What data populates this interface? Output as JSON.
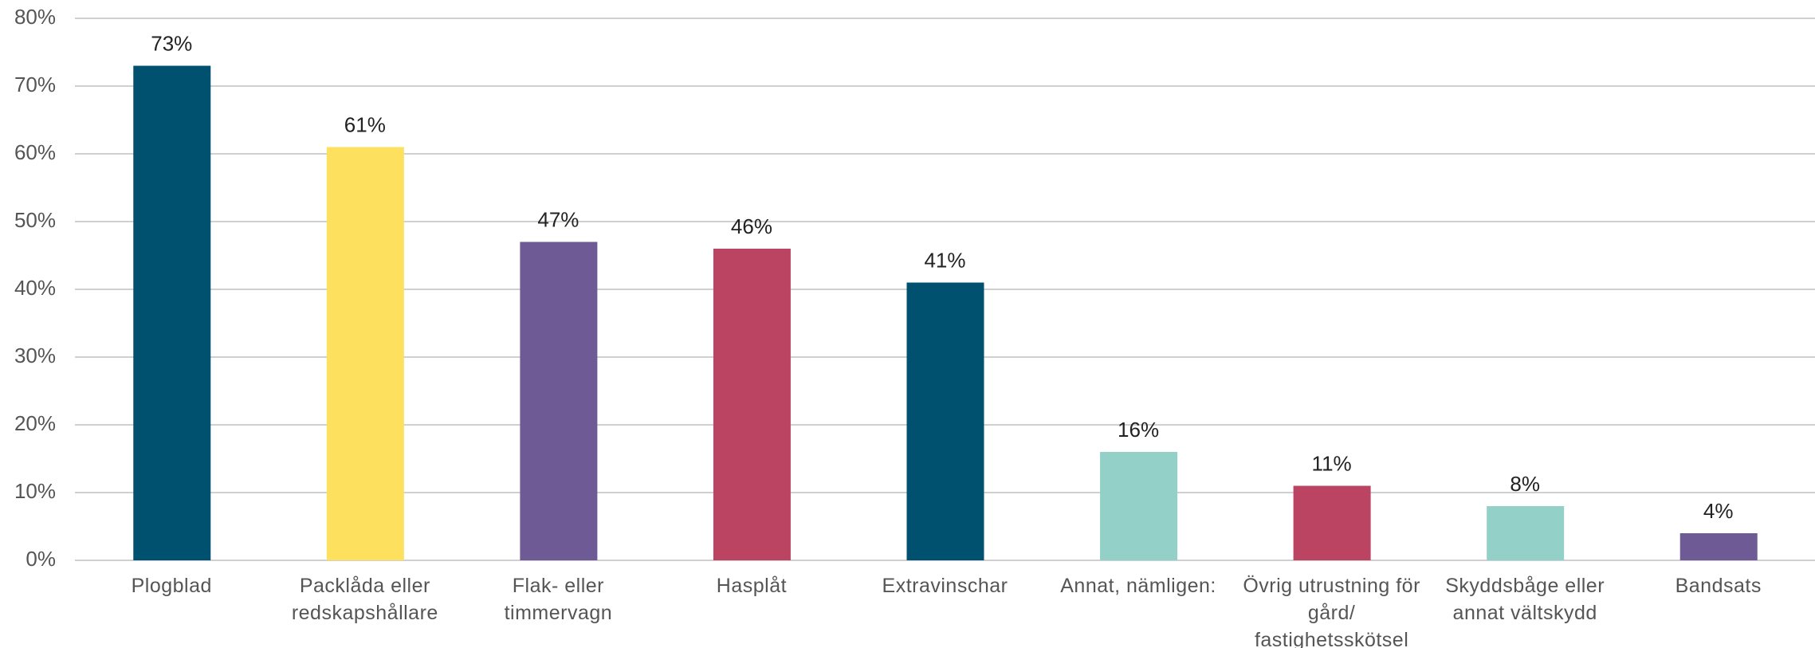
{
  "chart_data": {
    "type": "bar",
    "categories": [
      "Plogblad",
      "Packlåda eller redskapshållare",
      "Flak- eller timmervagn",
      "Hasplåt",
      "Extravinschar",
      "Annat, nämligen:",
      "Övrig utrustning för gård/ fastighetsskötsel",
      "Skyddsbåge eller annat vältskydd",
      "Bandsats"
    ],
    "values": [
      73,
      61,
      47,
      46,
      41,
      16,
      11,
      8,
      4
    ],
    "value_labels": [
      "73%",
      "61%",
      "47%",
      "46%",
      "41%",
      "16%",
      "11%",
      "8%",
      "4%"
    ],
    "colors": [
      "#00506f",
      "#fde05e",
      "#6e5b96",
      "#bc4463",
      "#00506f",
      "#93d0c7",
      "#bc4463",
      "#93d0c7",
      "#6e5b96"
    ],
    "ylim": [
      0,
      80
    ],
    "yticks": [
      {
        "value": 0,
        "label": "0%"
      },
      {
        "value": 10,
        "label": "10%"
      },
      {
        "value": 20,
        "label": "20%"
      },
      {
        "value": 30,
        "label": "30%"
      },
      {
        "value": 40,
        "label": "40%"
      },
      {
        "value": 50,
        "label": "50%"
      },
      {
        "value": 60,
        "label": "60%"
      },
      {
        "value": 70,
        "label": "70%"
      },
      {
        "value": 80,
        "label": "80%"
      }
    ],
    "grid": true
  }
}
